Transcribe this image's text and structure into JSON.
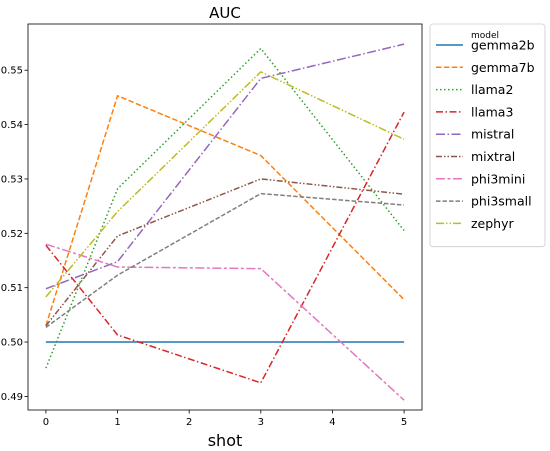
{
  "chart_data": {
    "type": "line",
    "title": "AUC",
    "xlabel": "shot",
    "ylabel": "",
    "x": [
      0,
      1,
      3,
      5
    ],
    "x_ticks": [
      "0",
      "1",
      "2",
      "3",
      "4",
      "5"
    ],
    "y_ticks": [
      "0.49",
      "0.50",
      "0.51",
      "0.52",
      "0.53",
      "0.54",
      "0.55"
    ],
    "xlim": [
      -0.25,
      5.25
    ],
    "ylim": [
      0.4875,
      0.5585
    ],
    "grid": false,
    "legend_position": "right",
    "legend_title": "model",
    "series": [
      {
        "name": "gemma2b",
        "color": "#1f77b4",
        "dash": "solid",
        "values": [
          0.5,
          0.5,
          0.5,
          0.5
        ]
      },
      {
        "name": "gemma7b",
        "color": "#ff7f0e",
        "dash": "dashed",
        "values": [
          0.503,
          0.5453,
          0.5343,
          0.5078
        ]
      },
      {
        "name": "llama2",
        "color": "#2ca02c",
        "dash": "dotted",
        "values": [
          0.4952,
          0.5282,
          0.554,
          0.5205
        ]
      },
      {
        "name": "llama3",
        "color": "#d62728",
        "dash": "dashdot",
        "values": [
          0.5178,
          0.5013,
          0.4925,
          0.5423
        ]
      },
      {
        "name": "mistral",
        "color": "#9467bd",
        "dash": "dashdot-long",
        "values": [
          0.5098,
          0.5148,
          0.5485,
          0.5548
        ]
      },
      {
        "name": "mixtral",
        "color": "#8c564b",
        "dash": "dashdotdot",
        "values": [
          0.503,
          0.5195,
          0.53,
          0.5272
        ]
      },
      {
        "name": "phi3mini",
        "color": "#e377c2",
        "dash": "dashdash-long",
        "values": [
          0.518,
          0.5138,
          0.5135,
          0.4893
        ]
      },
      {
        "name": "phi3small",
        "color": "#7f7f7f",
        "dash": "dashed-medium",
        "values": [
          0.5027,
          0.5123,
          0.5273,
          0.5252
        ]
      },
      {
        "name": "zephyr",
        "color": "#bcbd22",
        "dash": "dashdotdot-long",
        "values": [
          0.5083,
          0.524,
          0.5497,
          0.5373
        ]
      }
    ]
  }
}
